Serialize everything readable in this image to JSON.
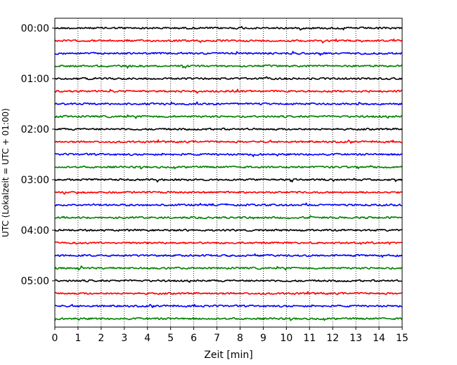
{
  "chart_data": {
    "type": "line",
    "title": "",
    "xlabel": "Zeit  [min]",
    "ylabel": "UTC (Lokalzeit = UTC + 01:00)",
    "xlim": [
      0,
      15
    ],
    "x_ticks": [
      "0",
      "1",
      "2",
      "3",
      "4",
      "5",
      "6",
      "7",
      "8",
      "9",
      "10",
      "11",
      "12",
      "13",
      "14",
      "15"
    ],
    "y_ticks": [
      "00:00",
      "01:00",
      "02:00",
      "03:00",
      "04:00",
      "05:00"
    ],
    "minutes_per_trace": 15,
    "grid": "vertical dotted at each minute",
    "trace_color_cycle": [
      "#000000",
      "#ff0000",
      "#0000ff",
      "#008000"
    ],
    "series": [
      {
        "start": "00:00",
        "color": "#000000"
      },
      {
        "start": "00:15",
        "color": "#ff0000"
      },
      {
        "start": "00:30",
        "color": "#0000ff"
      },
      {
        "start": "00:45",
        "color": "#008000"
      },
      {
        "start": "01:00",
        "color": "#000000"
      },
      {
        "start": "01:15",
        "color": "#ff0000"
      },
      {
        "start": "01:30",
        "color": "#0000ff"
      },
      {
        "start": "01:45",
        "color": "#008000"
      },
      {
        "start": "02:00",
        "color": "#000000"
      },
      {
        "start": "02:15",
        "color": "#ff0000"
      },
      {
        "start": "02:30",
        "color": "#0000ff"
      },
      {
        "start": "02:45",
        "color": "#008000"
      },
      {
        "start": "03:00",
        "color": "#000000"
      },
      {
        "start": "03:15",
        "color": "#ff0000"
      },
      {
        "start": "03:30",
        "color": "#0000ff"
      },
      {
        "start": "03:45",
        "color": "#008000"
      },
      {
        "start": "04:00",
        "color": "#000000"
      },
      {
        "start": "04:15",
        "color": "#ff0000"
      },
      {
        "start": "04:30",
        "color": "#0000ff"
      },
      {
        "start": "04:45",
        "color": "#008000"
      },
      {
        "start": "05:00",
        "color": "#000000"
      },
      {
        "start": "05:15",
        "color": "#ff0000"
      },
      {
        "start": "05:30",
        "color": "#0000ff"
      },
      {
        "start": "05:45",
        "color": "#008000"
      }
    ]
  }
}
